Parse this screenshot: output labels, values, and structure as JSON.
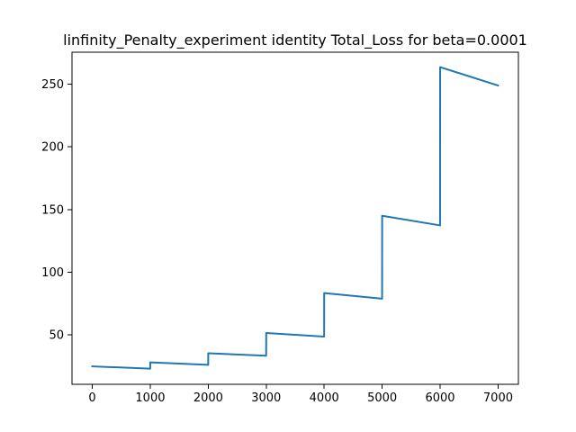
{
  "chart_data": {
    "type": "line",
    "title": "linfinity_Penalty_experiment identity Total_Loss for beta=0.0001",
    "xlabel": "",
    "ylabel": "",
    "xlim": [
      -350,
      7350
    ],
    "ylim": [
      10.5,
      275.5
    ],
    "grid": false,
    "legend": "none",
    "x_ticks": [
      0,
      1000,
      2000,
      3000,
      4000,
      5000,
      6000,
      7000
    ],
    "x_tick_labels": [
      "0",
      "1000",
      "2000",
      "3000",
      "4000",
      "5000",
      "6000",
      "7000"
    ],
    "y_ticks": [
      50,
      100,
      150,
      200,
      250
    ],
    "y_tick_labels": [
      "50",
      "100",
      "150",
      "200",
      "250"
    ],
    "series": [
      {
        "color": "#1f77b4",
        "x": [
          0,
          999,
          1000,
          1999,
          2000,
          2999,
          3000,
          3999,
          4000,
          4999,
          5000,
          5999,
          6000,
          6999
        ],
        "y": [
          24.8,
          23.0,
          28.0,
          26.0,
          35.3,
          33.3,
          51.4,
          48.6,
          83.3,
          78.8,
          145.0,
          137.3,
          263.6,
          248.9
        ]
      }
    ]
  }
}
